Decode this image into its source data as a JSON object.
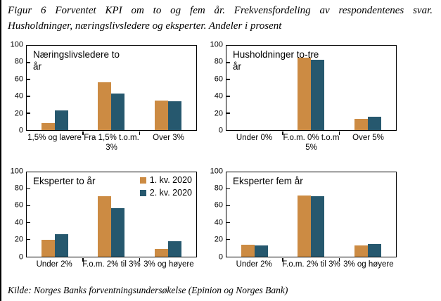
{
  "header": {
    "line1": "Figur 6 Forventet KPI om to og fem år. Frekvensfordeling av respondentenes svar.",
    "line2": "Husholdninger, næringslivsledere og eksperter. Andeler i prosent"
  },
  "footer": {
    "source": "Kilde: Norges Banks forventningsundersøkelse (Epinion og Norges Bank)"
  },
  "colors": {
    "series1": "#CC8B43",
    "series2": "#26586E",
    "axis": "#000000",
    "background": "#FFFFFF"
  },
  "chart_data": [
    {
      "type": "bar",
      "title": "Næringslivsledere to år",
      "categories": [
        "1,5% og lavere",
        "Fra 1,5% t.o.m. 3%",
        "Over 3%"
      ],
      "series": [
        {
          "name": "1. kv. 2020",
          "values": [
            8,
            57,
            35
          ]
        },
        {
          "name": "2. kv. 2020",
          "values": [
            23,
            43,
            34
          ]
        }
      ],
      "ylim": [
        0,
        100
      ],
      "yticks": [
        0,
        20,
        40,
        60,
        80,
        100
      ],
      "grid": false,
      "legend": false
    },
    {
      "type": "bar",
      "title": "Husholdninger to-tre år",
      "categories": [
        "Under 0%",
        "F.o.m. 0% t.o.m 5%",
        "Over 5%"
      ],
      "series": [
        {
          "name": "1. kv. 2020",
          "values": [
            0,
            86,
            13
          ]
        },
        {
          "name": "2. kv. 2020",
          "values": [
            0,
            83,
            16
          ]
        }
      ],
      "ylim": [
        0,
        100
      ],
      "yticks": [
        0,
        20,
        40,
        60,
        80,
        100
      ],
      "grid": false,
      "legend": false
    },
    {
      "type": "bar",
      "title": "Eksperter to år",
      "categories": [
        "Under 2%",
        "F.o.m. 2% til 3%",
        "3% og høyere"
      ],
      "series": [
        {
          "name": "1. kv. 2020",
          "values": [
            20,
            71,
            9
          ]
        },
        {
          "name": "2. kv. 2020",
          "values": [
            26,
            57,
            18
          ]
        }
      ],
      "ylim": [
        0,
        100
      ],
      "yticks": [
        0,
        20,
        40,
        60,
        80,
        100
      ],
      "grid": false,
      "legend": true,
      "legend_position": "top-right"
    },
    {
      "type": "bar",
      "title": "Eksperter fem år",
      "categories": [
        "Under 2%",
        "F.o.m. 2% til 3%",
        "3% og høyere"
      ],
      "series": [
        {
          "name": "1. kv. 2020",
          "values": [
            14,
            72,
            13
          ]
        },
        {
          "name": "2. kv. 2020",
          "values": [
            13,
            71,
            15
          ]
        }
      ],
      "ylim": [
        0,
        100
      ],
      "yticks": [
        0,
        20,
        40,
        60,
        80,
        100
      ],
      "grid": false,
      "legend": false
    }
  ]
}
